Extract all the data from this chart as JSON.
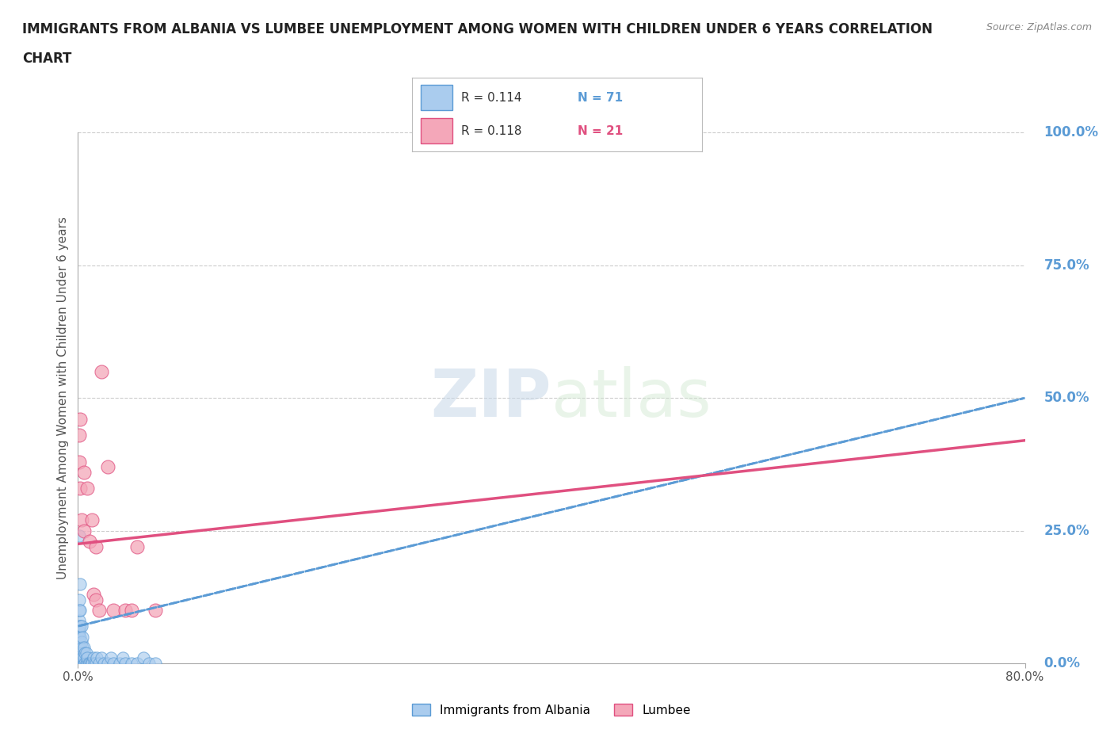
{
  "title_line1": "IMMIGRANTS FROM ALBANIA VS LUMBEE UNEMPLOYMENT AMONG WOMEN WITH CHILDREN UNDER 6 YEARS CORRELATION",
  "title_line2": "CHART",
  "source_text": "Source: ZipAtlas.com",
  "ylabel": "Unemployment Among Women with Children Under 6 years",
  "watermark": "ZIPatlas",
  "albania_R": 0.114,
  "albania_N": 71,
  "lumbee_R": 0.118,
  "lumbee_N": 21,
  "xlim": [
    0,
    0.8
  ],
  "ylim": [
    0,
    1.0
  ],
  "yticks": [
    0.0,
    0.25,
    0.5,
    0.75,
    1.0
  ],
  "ytick_labels": [
    "0.0%",
    "25.0%",
    "50.0%",
    "75.0%",
    "100.0%"
  ],
  "albania_color": "#aaccee",
  "albania_edge_color": "#5b9bd5",
  "lumbee_color": "#f4a7b9",
  "lumbee_edge_color": "#e05080",
  "trendline_albania_color": "#5b9bd5",
  "trendline_lumbee_color": "#e05080",
  "grid_color": "#cccccc",
  "axis_color": "#aaaaaa",
  "right_label_color": "#5b9bd5",
  "title_color": "#222222",
  "background_color": "#ffffff",
  "albania_x": [
    0.001,
    0.001,
    0.001,
    0.001,
    0.001,
    0.001,
    0.001,
    0.001,
    0.001,
    0.001,
    0.001,
    0.001,
    0.001,
    0.001,
    0.001,
    0.001,
    0.001,
    0.001,
    0.001,
    0.001,
    0.002,
    0.002,
    0.002,
    0.002,
    0.002,
    0.002,
    0.002,
    0.002,
    0.002,
    0.002,
    0.003,
    0.003,
    0.003,
    0.003,
    0.003,
    0.003,
    0.004,
    0.004,
    0.004,
    0.004,
    0.005,
    0.005,
    0.005,
    0.006,
    0.006,
    0.007,
    0.007,
    0.008,
    0.008,
    0.009,
    0.01,
    0.011,
    0.012,
    0.013,
    0.014,
    0.015,
    0.016,
    0.018,
    0.02,
    0.022,
    0.025,
    0.028,
    0.03,
    0.035,
    0.038,
    0.04,
    0.045,
    0.05,
    0.055,
    0.06,
    0.065
  ],
  "albania_y": [
    0.0,
    0.0,
    0.0,
    0.0,
    0.0,
    0.0,
    0.01,
    0.01,
    0.02,
    0.02,
    0.03,
    0.03,
    0.04,
    0.05,
    0.06,
    0.07,
    0.08,
    0.1,
    0.12,
    0.24,
    0.0,
    0.0,
    0.0,
    0.01,
    0.02,
    0.03,
    0.05,
    0.07,
    0.1,
    0.15,
    0.0,
    0.0,
    0.01,
    0.02,
    0.04,
    0.07,
    0.0,
    0.01,
    0.03,
    0.05,
    0.0,
    0.01,
    0.03,
    0.0,
    0.02,
    0.0,
    0.02,
    0.0,
    0.01,
    0.0,
    0.0,
    0.0,
    0.0,
    0.01,
    0.0,
    0.0,
    0.01,
    0.0,
    0.01,
    0.0,
    0.0,
    0.01,
    0.0,
    0.0,
    0.01,
    0.0,
    0.0,
    0.0,
    0.01,
    0.0,
    0.0
  ],
  "lumbee_x": [
    0.001,
    0.001,
    0.002,
    0.002,
    0.003,
    0.005,
    0.005,
    0.008,
    0.01,
    0.012,
    0.013,
    0.015,
    0.015,
    0.018,
    0.02,
    0.025,
    0.03,
    0.04,
    0.045,
    0.05,
    0.065
  ],
  "lumbee_y": [
    0.43,
    0.38,
    0.46,
    0.33,
    0.27,
    0.36,
    0.25,
    0.33,
    0.23,
    0.27,
    0.13,
    0.22,
    0.12,
    0.1,
    0.55,
    0.37,
    0.1,
    0.1,
    0.1,
    0.22,
    0.1
  ],
  "albania_trendline": [
    0.0,
    0.07,
    0.8,
    0.5
  ],
  "lumbee_trendline": [
    0.0,
    0.225,
    0.8,
    0.42
  ]
}
